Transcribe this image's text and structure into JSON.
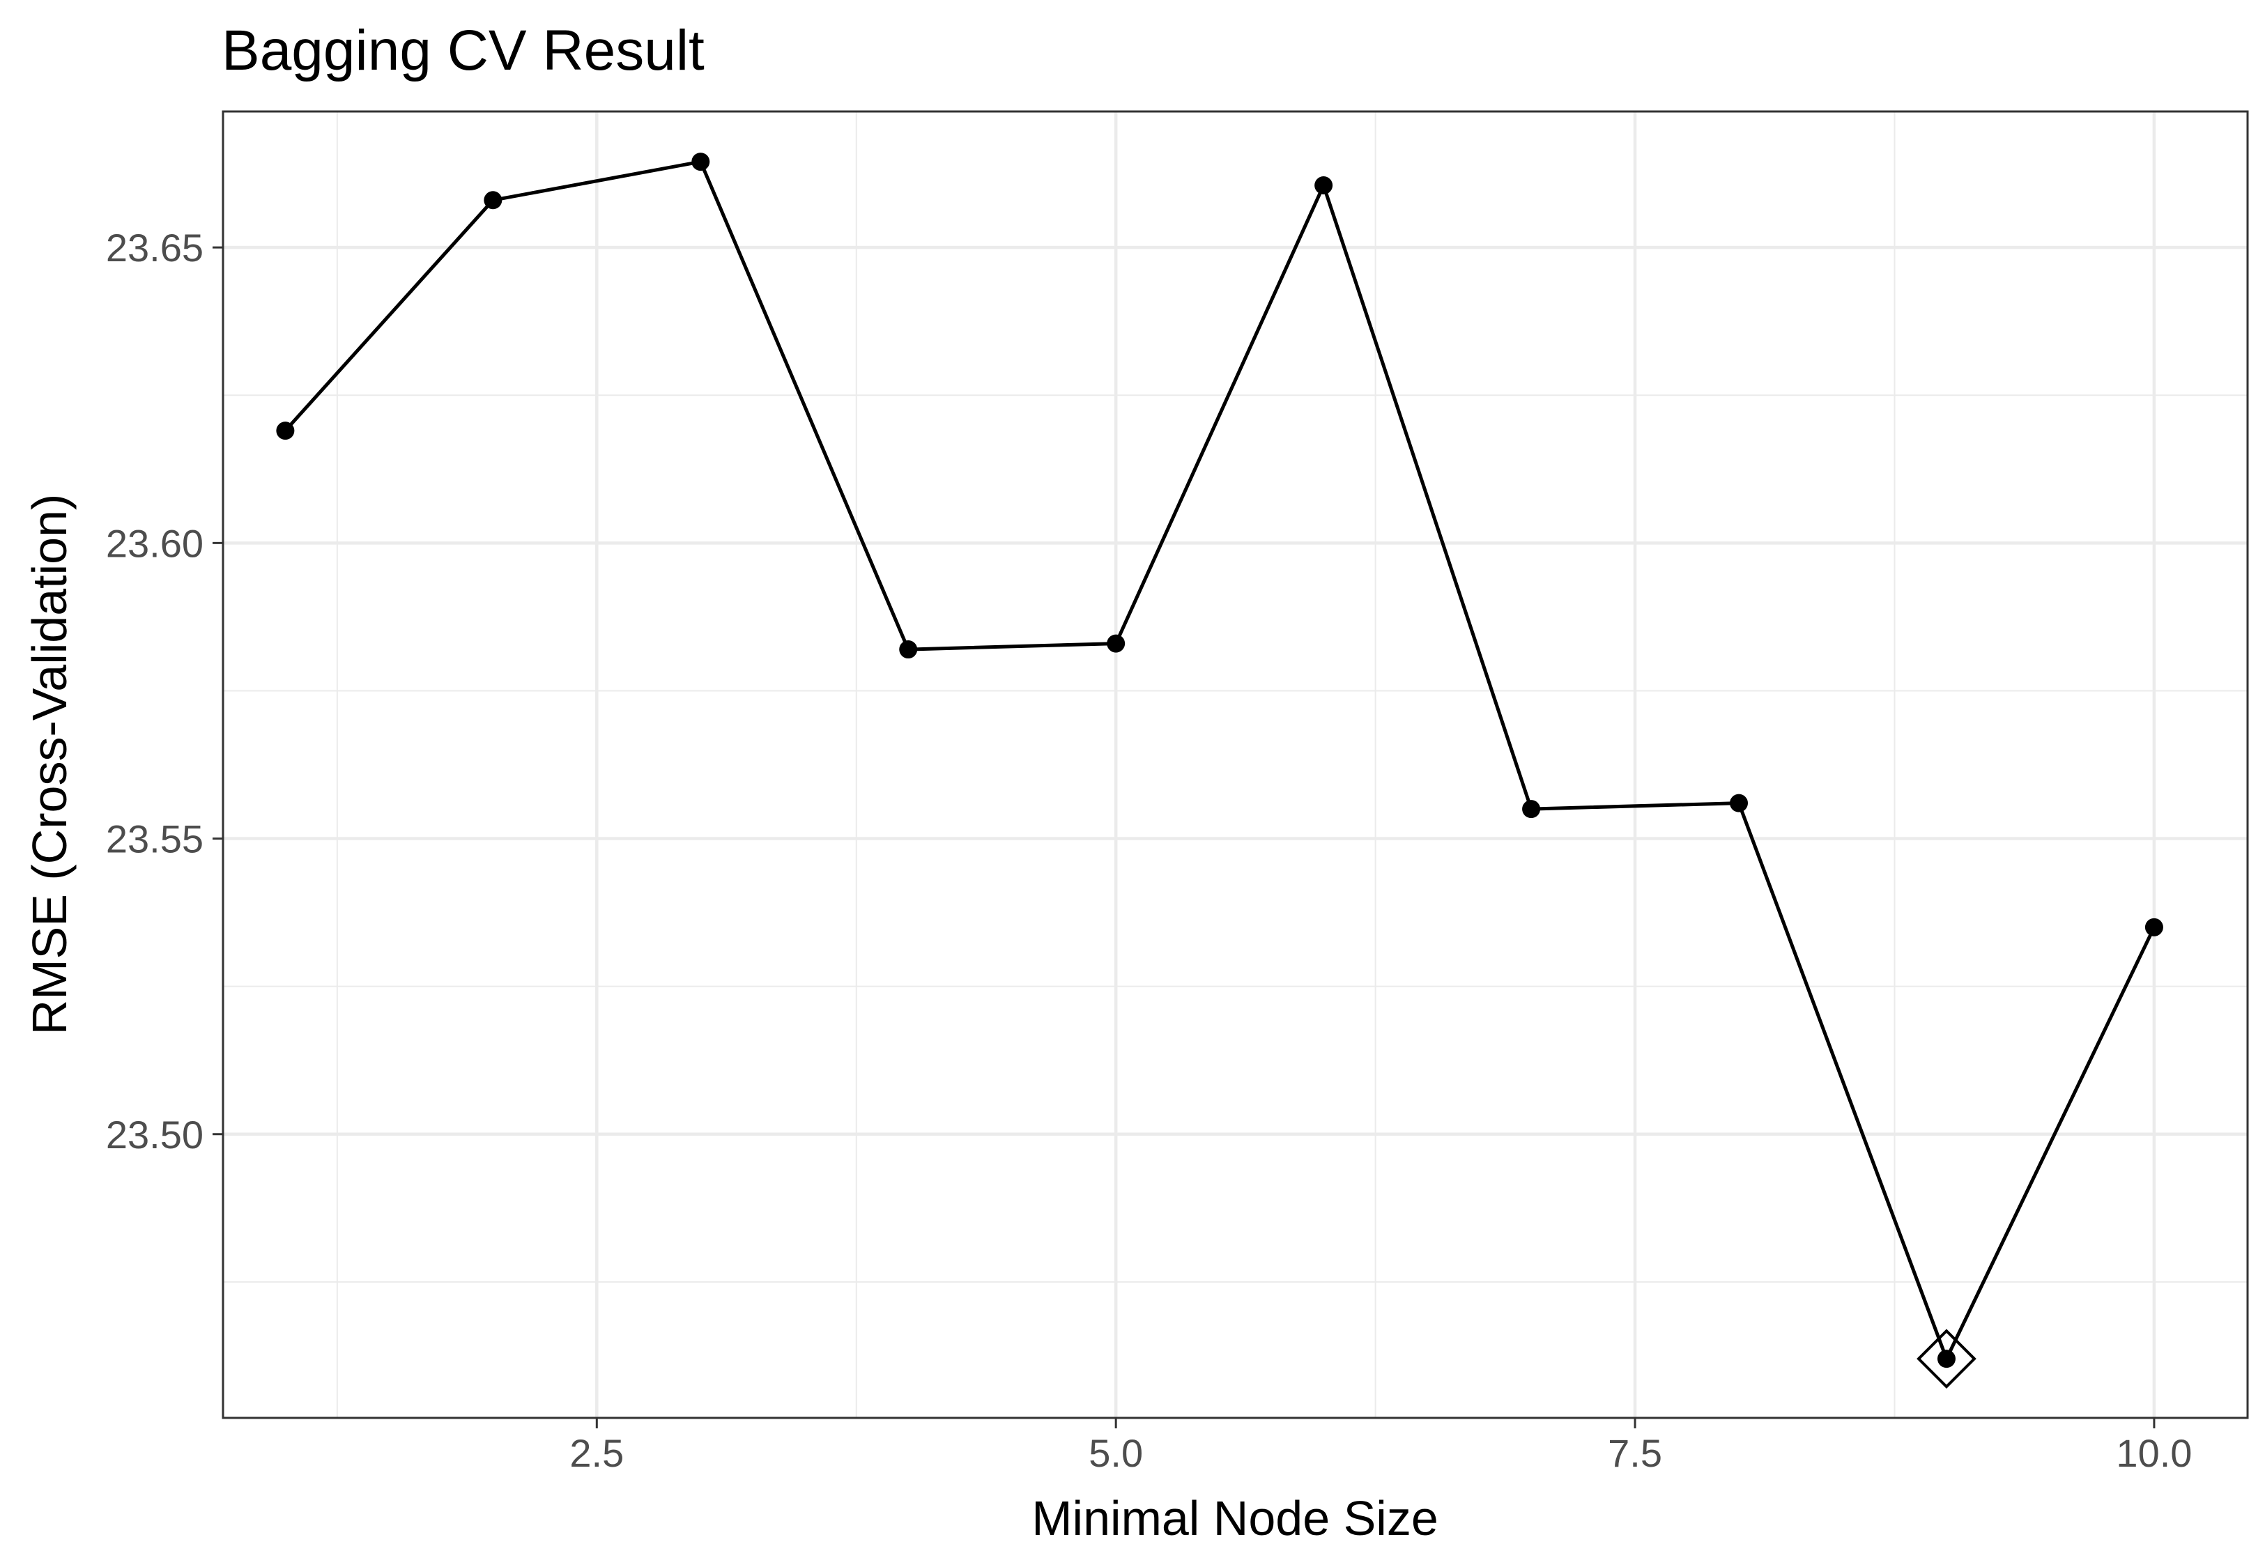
{
  "chart_data": {
    "type": "line",
    "title": "Bagging CV Result",
    "xlabel": "Minimal Node Size",
    "ylabel": "RMSE (Cross-Validation)",
    "x": [
      1,
      2,
      3,
      4,
      5,
      6,
      7,
      8,
      9,
      10
    ],
    "y": [
      23.619,
      23.658,
      23.6645,
      23.582,
      23.583,
      23.6605,
      23.555,
      23.556,
      23.462,
      23.535
    ],
    "xlim": [
      0.7,
      10.45
    ],
    "ylim": [
      23.452,
      23.673
    ],
    "xticks": [
      2.5,
      5.0,
      7.5,
      10.0
    ],
    "xtick_labels": [
      "2.5",
      "5.0",
      "7.5",
      "10.0"
    ],
    "yticks": [
      23.5,
      23.55,
      23.6,
      23.65
    ],
    "ytick_labels": [
      "23.50",
      "23.55",
      "23.60",
      "23.65"
    ],
    "grid": true,
    "best_point": {
      "x": 9,
      "y": 23.462,
      "marker": "open-diamond"
    },
    "colors": {
      "line": "#000000",
      "points": "#000000",
      "grid": "#ebebeb",
      "panel_border": "#333333"
    }
  }
}
